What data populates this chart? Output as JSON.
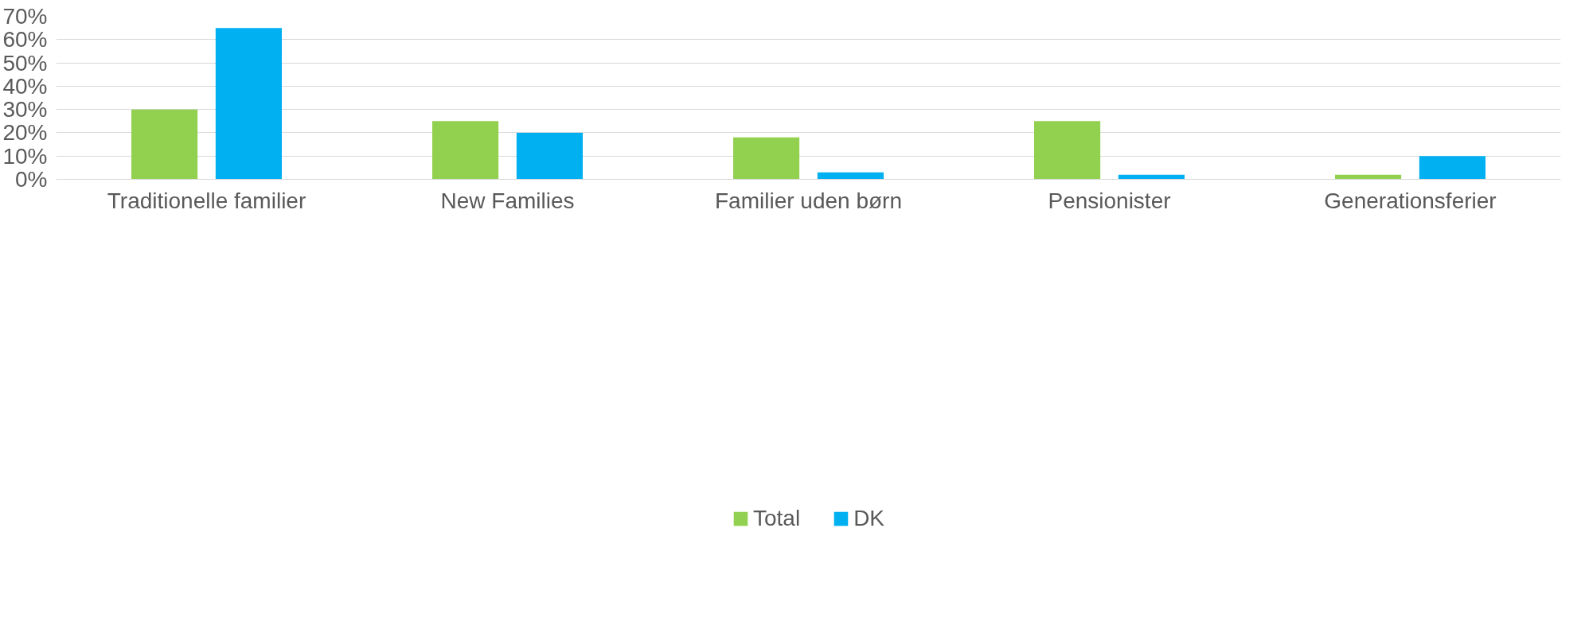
{
  "chart_data": {
    "type": "bar",
    "categories": [
      "Traditionelle familier",
      "New Families",
      "Familier uden børn",
      "Pensionister",
      "Generationsferier"
    ],
    "series": [
      {
        "name": "Total",
        "color": "#92d050",
        "values": [
          30,
          25,
          18,
          25,
          2
        ]
      },
      {
        "name": "DK",
        "color": "#00b0f0",
        "values": [
          65,
          20,
          3,
          2,
          10
        ]
      }
    ],
    "ylim": [
      0,
      70
    ],
    "yticks": [
      {
        "value": 0,
        "label": "0%"
      },
      {
        "value": 10,
        "label": "10%"
      },
      {
        "value": 20,
        "label": "20%"
      },
      {
        "value": 30,
        "label": "30%"
      },
      {
        "value": 40,
        "label": "40%"
      },
      {
        "value": 50,
        "label": "50%"
      },
      {
        "value": 60,
        "label": "60%"
      },
      {
        "value": 70,
        "label": "70%"
      }
    ],
    "grid": "y",
    "legend": "bottom"
  }
}
